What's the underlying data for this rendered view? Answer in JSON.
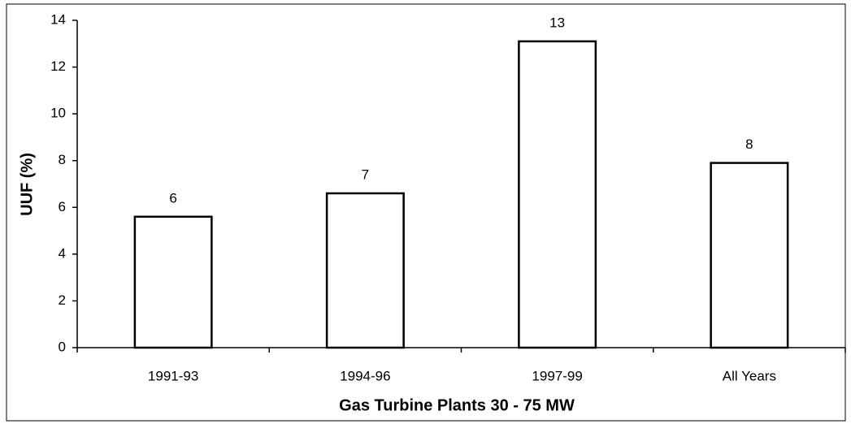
{
  "chart_data": {
    "type": "bar",
    "x_label": "Gas Turbine Plants 30 - 75 MW",
    "y_label": "UUF (%)",
    "categories": [
      "1991-93",
      "1994-96",
      "1997-99",
      "All Years"
    ],
    "values": [
      5.6,
      6.6,
      13.1,
      7.9
    ],
    "value_labels": [
      "6",
      "7",
      "13",
      "8"
    ],
    "color": "#ffffff",
    "ylim": [
      0,
      14
    ],
    "yticks": [
      0,
      2,
      4,
      6,
      8,
      10,
      12,
      14
    ],
    "grid": false
  }
}
